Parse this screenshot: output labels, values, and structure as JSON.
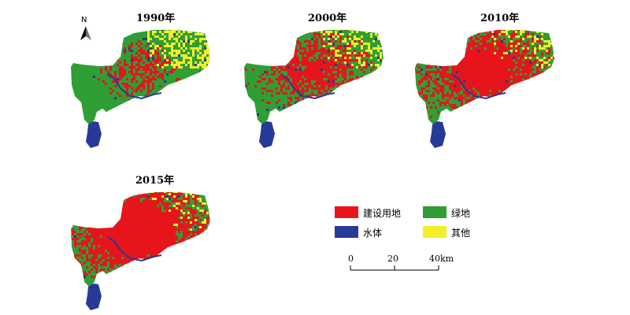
{
  "maps": [
    {
      "year_label": "1990年",
      "built_fraction": 0.35
    },
    {
      "year_label": "2000年",
      "built_fraction": 0.55
    },
    {
      "year_label": "2010年",
      "built_fraction": 0.7
    },
    {
      "year_label": "2015年",
      "built_fraction": 0.8
    }
  ],
  "north_label": "N",
  "legend": [
    {
      "label": "建设用地",
      "color": "#e8141c"
    },
    {
      "label": "绿地",
      "color": "#2e9e35"
    },
    {
      "label": "水体",
      "color": "#273a97"
    },
    {
      "label": "其他",
      "color": "#f2ee2a"
    }
  ],
  "scale_bar": {
    "tick_labels": [
      "0",
      "20",
      "40km"
    ]
  }
}
